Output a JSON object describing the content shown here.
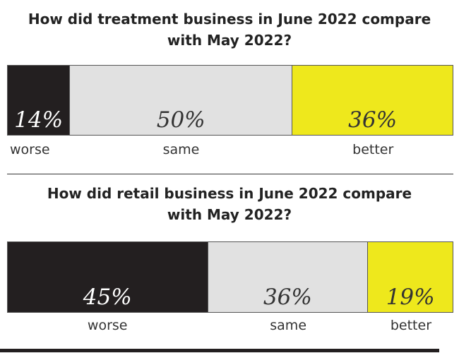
{
  "colors": {
    "worse": "#231f20",
    "same": "#e1e1e1",
    "better": "#eee81c",
    "text_on_dark": "#ffffff",
    "text_on_light": "#333333"
  },
  "chart_data": [
    {
      "type": "bar",
      "stacked": true,
      "orientation": "horizontal",
      "title": "How did treatment business in June 2022 compare with May 2022?",
      "title_lines": [
        "How did treatment business in June 2022 compare",
        "with May 2022?"
      ],
      "categories": [
        "worse",
        "same",
        "better"
      ],
      "values": [
        14,
        50,
        36
      ],
      "value_labels": [
        "14%",
        "50%",
        "36%"
      ],
      "unit": "%"
    },
    {
      "type": "bar",
      "stacked": true,
      "orientation": "horizontal",
      "title": "How did retail business in June 2022 compare with May 2022?",
      "title_lines": [
        "How did retail business in June 2022 compare",
        "with May 2022?"
      ],
      "categories": [
        "worse",
        "same",
        "better"
      ],
      "values": [
        45,
        36,
        19
      ],
      "value_labels": [
        "45%",
        "36%",
        "19%"
      ],
      "unit": "%"
    }
  ]
}
